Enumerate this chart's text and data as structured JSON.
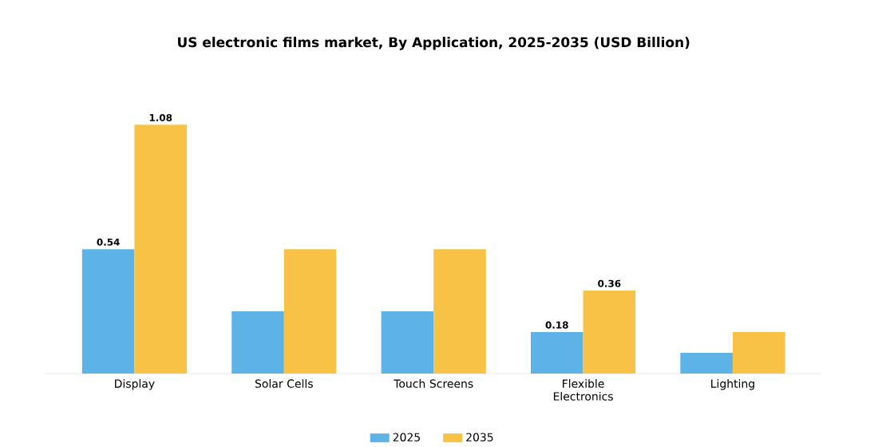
{
  "chart_data": {
    "type": "bar",
    "title": "US electronic films market, By Application, 2025-2035 (USD Billion)",
    "categories": [
      "Display",
      "Solar Cells",
      "Touch Screens",
      "Flexible Electronics",
      "Lighting"
    ],
    "series": [
      {
        "name": "2025",
        "color": "#5db3e6",
        "values": [
          0.54,
          0.27,
          0.27,
          0.18,
          0.09
        ],
        "value_labels": [
          "0.54",
          null,
          null,
          "0.18",
          null
        ]
      },
      {
        "name": "2035",
        "color": "#f7c245",
        "values": [
          1.08,
          0.54,
          0.54,
          0.36,
          0.18
        ],
        "value_labels": [
          "1.08",
          null,
          null,
          "0.36",
          null
        ]
      }
    ],
    "legend": "bottom"
  }
}
